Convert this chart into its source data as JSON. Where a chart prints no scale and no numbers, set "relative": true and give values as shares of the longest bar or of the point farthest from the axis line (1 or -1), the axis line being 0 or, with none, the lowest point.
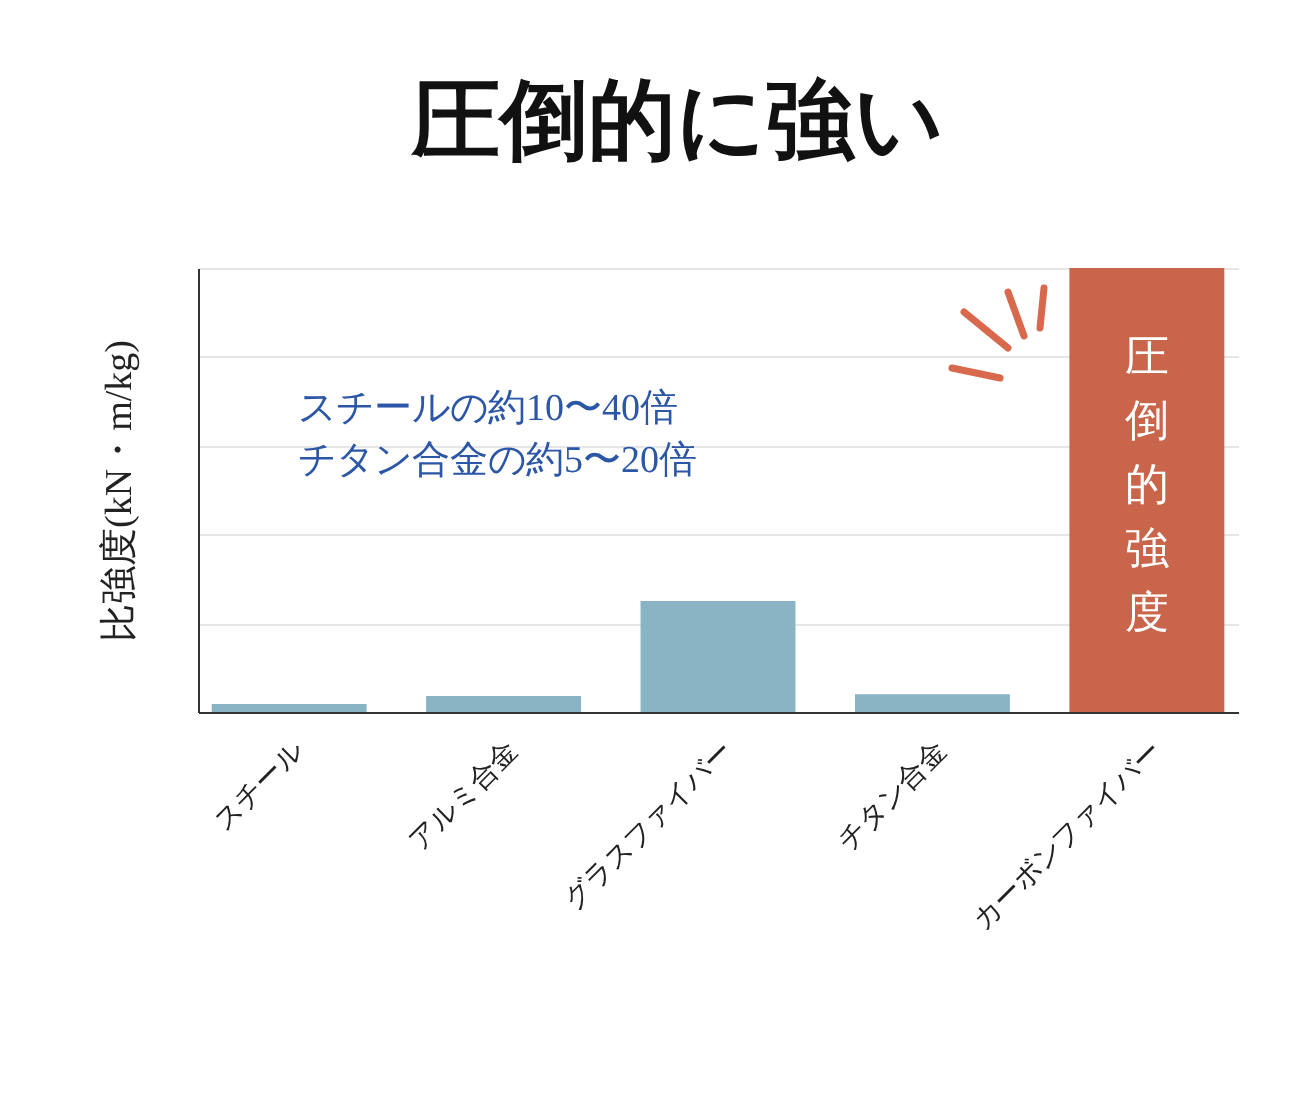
{
  "chart_data": {
    "type": "bar",
    "title": "圧倒的に強い",
    "ylabel": "比強度(kN・m/kg)",
    "categories": [
      "スチール",
      "アルミ合金",
      "グラスファイバー",
      "チタン合金",
      "カーボンファイバー"
    ],
    "values": [
      0.018,
      0.036,
      0.25,
      0.04,
      1
    ],
    "colors": [
      "#8ab4c4",
      "#8ab4c4",
      "#8ab4c4",
      "#8ab4c4",
      "#c8654a"
    ],
    "relative": true,
    "grid": "y",
    "annotations": [
      "スチールの約10〜40倍",
      "チタン合金の約5〜20倍",
      {
        "text": "圧倒的強度",
        "x": "カーボンファイバー",
        "y": 0.8
      }
    ]
  }
}
